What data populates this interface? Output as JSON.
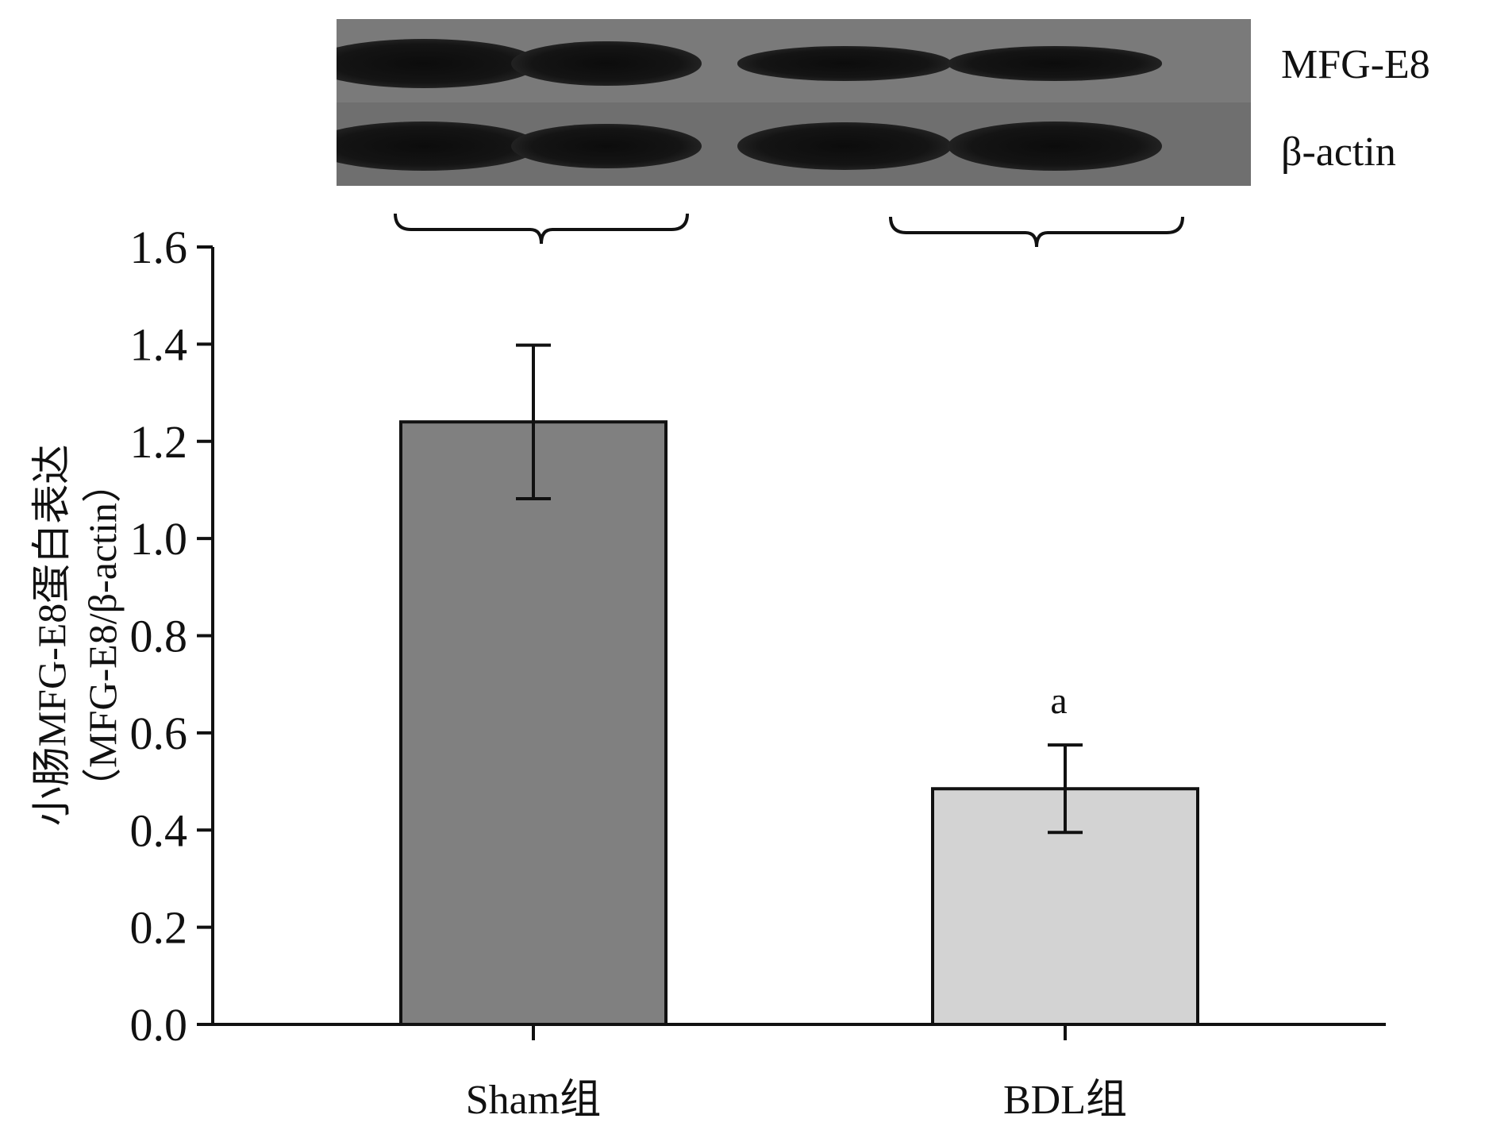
{
  "blot": {
    "labels": [
      "MFG-E8",
      "β-actin"
    ],
    "lanes": 4,
    "band_intensity": {
      "MFG-E8": [
        1.0,
        0.85,
        0.45,
        0.45
      ],
      "β-actin": [
        0.95,
        0.8,
        0.9,
        0.95
      ]
    }
  },
  "chart_data": {
    "type": "bar",
    "categories": [
      "Sham组",
      "BDL组"
    ],
    "values": [
      1.24,
      0.485
    ],
    "error": [
      0.158,
      0.09
    ],
    "colors": [
      "#808080",
      "#d3d3d3"
    ],
    "annotations": [
      "",
      "a"
    ],
    "ylabel_lines": [
      "小肠MFG-E8蛋白表达",
      "（MFG-E8/β-actin）"
    ],
    "ylim": [
      0,
      1.6
    ],
    "yticks": [
      "0.0",
      "0.2",
      "0.4",
      "0.6",
      "0.8",
      "1.0",
      "1.2",
      "1.4",
      "1.6"
    ],
    "xlabel": "",
    "title": ""
  }
}
